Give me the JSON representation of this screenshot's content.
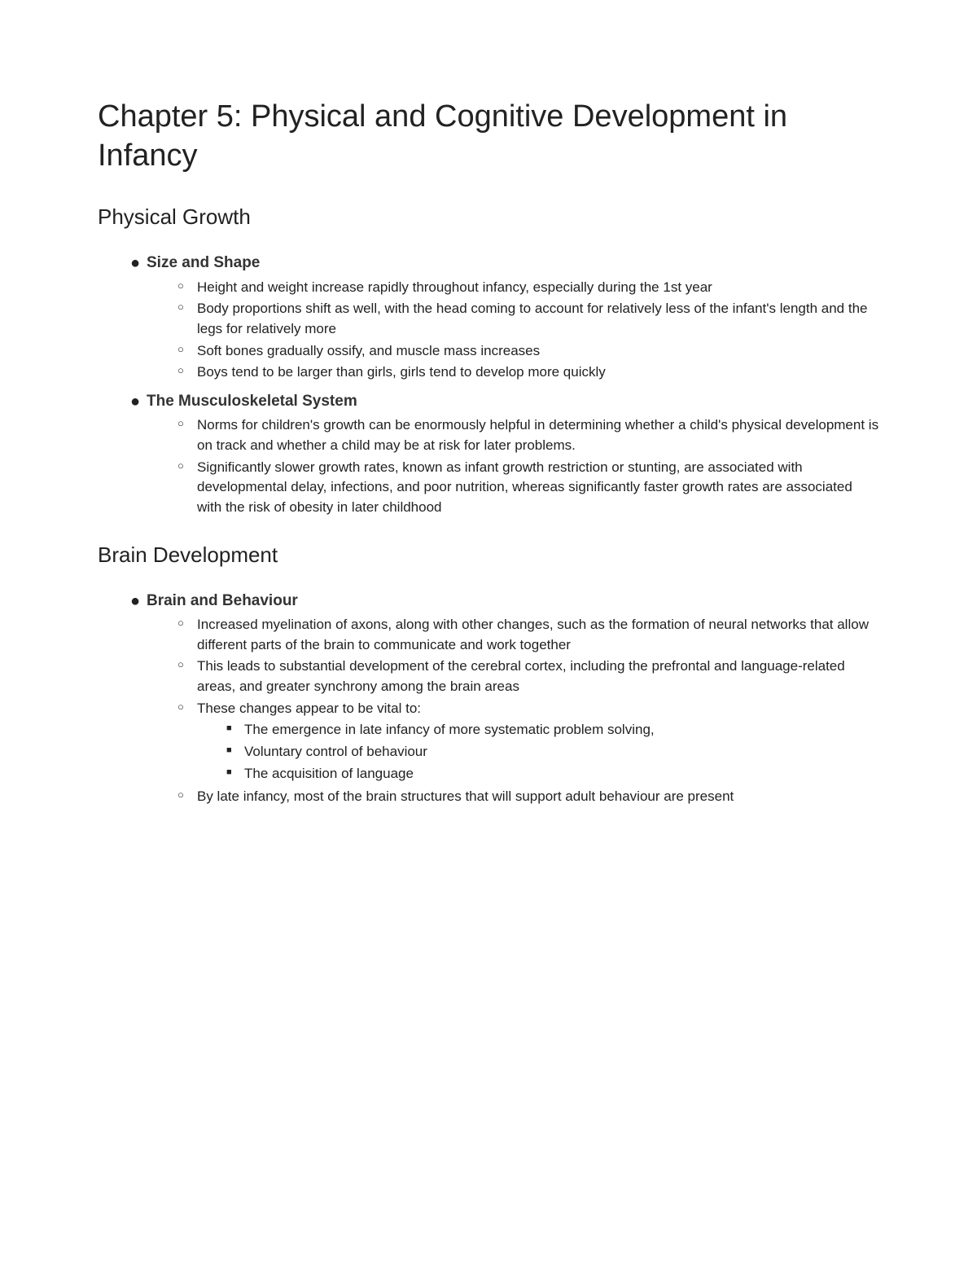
{
  "title": "Chapter 5: Physical and Cognitive Development in Infancy",
  "sections": [
    {
      "heading": "Physical Growth",
      "topics": [
        {
          "title": "Size and Shape",
          "points": [
            {
              "text": "Height and weight increase rapidly throughout infancy, especially during the 1st year"
            },
            {
              "text": "Body proportions shift as well, with the head coming to account for relatively less of the infant's length and the legs for relatively more"
            },
            {
              "text": "Soft bones gradually ossify, and muscle mass increases"
            },
            {
              "text": "Boys tend to be larger than girls, girls tend to develop more quickly"
            }
          ]
        },
        {
          "title": "The Musculoskeletal System",
          "points": [
            {
              "text": "Norms for children's growth can be enormously helpful in determining whether a child's physical development is on track and whether a child may be at risk for later problems."
            },
            {
              "text": "Significantly slower growth rates, known as infant growth restriction or stunting, are associated with developmental delay, infections, and poor nutrition, whereas significantly faster growth rates are associated with the risk of obesity in later childhood"
            }
          ]
        }
      ]
    },
    {
      "heading": "Brain Development",
      "topics": [
        {
          "title": "Brain and Behaviour",
          "points": [
            {
              "text": "Increased myelination of axons, along with other changes, such as the formation of neural networks that allow different parts of the brain to communicate and work together"
            },
            {
              "text": "This leads to substantial development of the cerebral cortex, including the prefrontal and language-related areas, and greater synchrony among the brain areas"
            },
            {
              "text": "These changes appear to be vital to:",
              "subs": [
                "The emergence in late infancy of more systematic problem solving,",
                "Voluntary control of behaviour",
                "The acquisition of language"
              ]
            },
            {
              "text": "By late infancy, most of the brain structures that will support adult behaviour are present"
            }
          ]
        }
      ]
    }
  ],
  "colors": {
    "background": "#ffffff",
    "text": "#222222",
    "topic_title": "#333333"
  },
  "typography": {
    "title_fontsize": 38,
    "section_heading_fontsize": 26,
    "topic_title_fontsize": 19,
    "body_fontsize": 17,
    "font_family": "Arial"
  },
  "bullets": {
    "level1": "●",
    "level2": "○",
    "level3": "■"
  }
}
